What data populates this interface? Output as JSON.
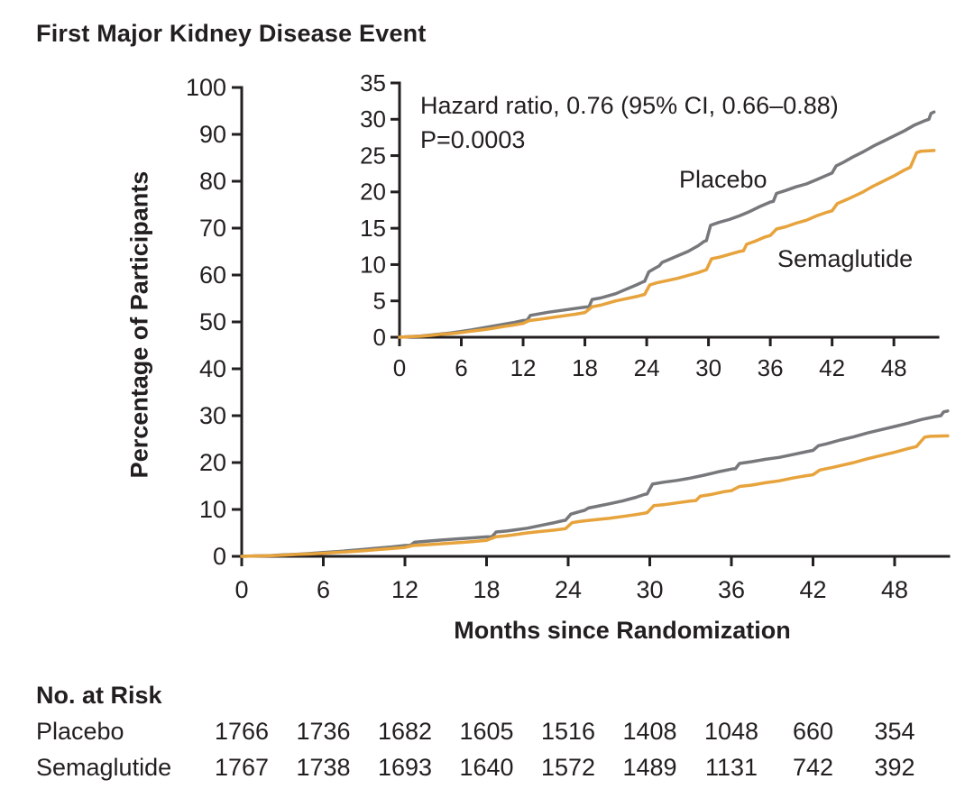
{
  "title": "First Major Kidney Disease Event",
  "colors": {
    "axis": "#231f20",
    "text": "#231f20",
    "placebo": "#76787b",
    "semaglutide": "#e7a33c"
  },
  "annotations": {
    "hazard_ratio": "Hazard ratio, 0.76 (95% CI, 0.66–0.88)",
    "p_value": "P=0.0003"
  },
  "series_labels": {
    "placebo": "Placebo",
    "semaglutide": "Semaglutide"
  },
  "axes": {
    "x_label": "Months since Randomization",
    "y_label": "Percentage of Participants"
  },
  "at_risk": {
    "heading": "No. at Risk",
    "time_points": [
      0,
      6,
      12,
      18,
      24,
      30,
      36,
      42,
      48
    ],
    "rows": [
      {
        "label": "Placebo",
        "values": [
          "1766",
          "1736",
          "1682",
          "1605",
          "1516",
          "1408",
          "1048",
          "660",
          "354"
        ]
      },
      {
        "label": "Semaglutide",
        "values": [
          "1767",
          "1738",
          "1693",
          "1640",
          "1572",
          "1489",
          "1131",
          "742",
          "392"
        ]
      }
    ]
  },
  "chart_data": {
    "type": "line",
    "title": "First Major Kidney Disease Event",
    "xlabel": "Months since Randomization",
    "ylabel": "Percentage of Participants",
    "annotations": [
      "Hazard ratio, 0.76 (95% CI, 0.66–0.88)",
      "P=0.0003"
    ],
    "legend_position": "curve-labels-inline",
    "grid": false,
    "plots": [
      {
        "id": "main",
        "xlim": [
          0,
          52
        ],
        "ylim": [
          0,
          100
        ],
        "xticks": [
          0,
          6,
          12,
          18,
          24,
          30,
          36,
          42,
          48
        ],
        "yticks": [
          0,
          10,
          20,
          30,
          40,
          50,
          60,
          70,
          80,
          90,
          100
        ]
      },
      {
        "id": "inset",
        "xlim": [
          0,
          52
        ],
        "ylim": [
          0,
          35
        ],
        "xticks": [
          0,
          6,
          12,
          18,
          24,
          30,
          36,
          42,
          48
        ],
        "yticks": [
          0,
          5,
          10,
          15,
          20,
          25,
          30,
          35
        ]
      }
    ],
    "series": [
      {
        "name": "Placebo",
        "color": "#76787b",
        "points": [
          [
            0,
            0
          ],
          [
            1,
            0.1
          ],
          [
            2,
            0.15
          ],
          [
            3,
            0.3
          ],
          [
            4,
            0.45
          ],
          [
            5,
            0.6
          ],
          [
            6,
            0.8
          ],
          [
            7,
            1.0
          ],
          [
            8,
            1.25
          ],
          [
            9,
            1.5
          ],
          [
            10,
            1.75
          ],
          [
            11,
            2.0
          ],
          [
            12,
            2.3
          ],
          [
            12.4,
            2.35
          ],
          [
            12.7,
            3.0
          ],
          [
            13.5,
            3.2
          ],
          [
            14.5,
            3.45
          ],
          [
            16,
            3.75
          ],
          [
            17,
            3.95
          ],
          [
            18,
            4.15
          ],
          [
            18.4,
            4.2
          ],
          [
            18.7,
            5.2
          ],
          [
            19.5,
            5.4
          ],
          [
            20,
            5.6
          ],
          [
            21,
            6.0
          ],
          [
            22,
            6.6
          ],
          [
            23,
            7.2
          ],
          [
            23.6,
            7.6
          ],
          [
            23.8,
            7.7
          ],
          [
            24.2,
            9.0
          ],
          [
            24.8,
            9.5
          ],
          [
            25.2,
            9.8
          ],
          [
            25.5,
            10.3
          ],
          [
            26,
            10.6
          ],
          [
            27,
            11.2
          ],
          [
            28,
            11.8
          ],
          [
            29,
            12.6
          ],
          [
            29.6,
            13.2
          ],
          [
            29.8,
            13.3
          ],
          [
            30.2,
            15.4
          ],
          [
            31,
            15.8
          ],
          [
            32,
            16.2
          ],
          [
            33,
            16.7
          ],
          [
            34,
            17.3
          ],
          [
            35,
            18.0
          ],
          [
            36,
            18.6
          ],
          [
            36.3,
            18.7
          ],
          [
            36.6,
            19.8
          ],
          [
            37.5,
            20.2
          ],
          [
            38.5,
            20.7
          ],
          [
            39.5,
            21.1
          ],
          [
            40.5,
            21.7
          ],
          [
            41.5,
            22.3
          ],
          [
            42,
            22.6
          ],
          [
            42.4,
            23.6
          ],
          [
            43,
            24.0
          ],
          [
            44,
            24.8
          ],
          [
            45,
            25.5
          ],
          [
            46,
            26.3
          ],
          [
            47,
            27.0
          ],
          [
            48,
            27.7
          ],
          [
            49,
            28.4
          ],
          [
            50,
            29.2
          ],
          [
            51,
            29.8
          ],
          [
            51.4,
            30.0
          ],
          [
            51.6,
            30.8
          ],
          [
            51.9,
            31.0
          ]
        ]
      },
      {
        "name": "Semaglutide",
        "color": "#e7a33c",
        "points": [
          [
            0,
            0
          ],
          [
            1,
            0.08
          ],
          [
            2,
            0.12
          ],
          [
            3,
            0.25
          ],
          [
            4,
            0.4
          ],
          [
            5,
            0.5
          ],
          [
            6,
            0.65
          ],
          [
            7,
            0.85
          ],
          [
            8,
            1.0
          ],
          [
            9,
            1.2
          ],
          [
            10,
            1.45
          ],
          [
            11,
            1.65
          ],
          [
            12,
            1.9
          ],
          [
            12.6,
            2.3
          ],
          [
            13.5,
            2.45
          ],
          [
            14.5,
            2.65
          ],
          [
            16,
            2.95
          ],
          [
            17,
            3.15
          ],
          [
            18,
            3.4
          ],
          [
            18.7,
            4.2
          ],
          [
            19.5,
            4.4
          ],
          [
            20,
            4.6
          ],
          [
            21,
            5.0
          ],
          [
            22,
            5.3
          ],
          [
            23,
            5.6
          ],
          [
            23.8,
            5.9
          ],
          [
            24.3,
            7.2
          ],
          [
            25,
            7.5
          ],
          [
            26,
            7.8
          ],
          [
            27,
            8.1
          ],
          [
            28,
            8.5
          ],
          [
            29,
            8.9
          ],
          [
            29.8,
            9.3
          ],
          [
            30.3,
            10.8
          ],
          [
            31,
            11.0
          ],
          [
            32,
            11.4
          ],
          [
            33,
            11.8
          ],
          [
            33.4,
            11.9
          ],
          [
            33.7,
            12.8
          ],
          [
            34.5,
            13.2
          ],
          [
            35.5,
            13.8
          ],
          [
            36,
            14.0
          ],
          [
            36.6,
            14.9
          ],
          [
            37.5,
            15.2
          ],
          [
            38.5,
            15.7
          ],
          [
            39.5,
            16.1
          ],
          [
            40.5,
            16.7
          ],
          [
            41.5,
            17.2
          ],
          [
            42,
            17.4
          ],
          [
            42.5,
            18.4
          ],
          [
            43.5,
            19.0
          ],
          [
            45,
            20.0
          ],
          [
            46,
            20.8
          ],
          [
            47,
            21.5
          ],
          [
            48,
            22.2
          ],
          [
            49,
            23.0
          ],
          [
            49.6,
            23.4
          ],
          [
            50.2,
            25.4
          ],
          [
            50.6,
            25.6
          ],
          [
            51.9,
            25.7
          ]
        ]
      }
    ]
  }
}
